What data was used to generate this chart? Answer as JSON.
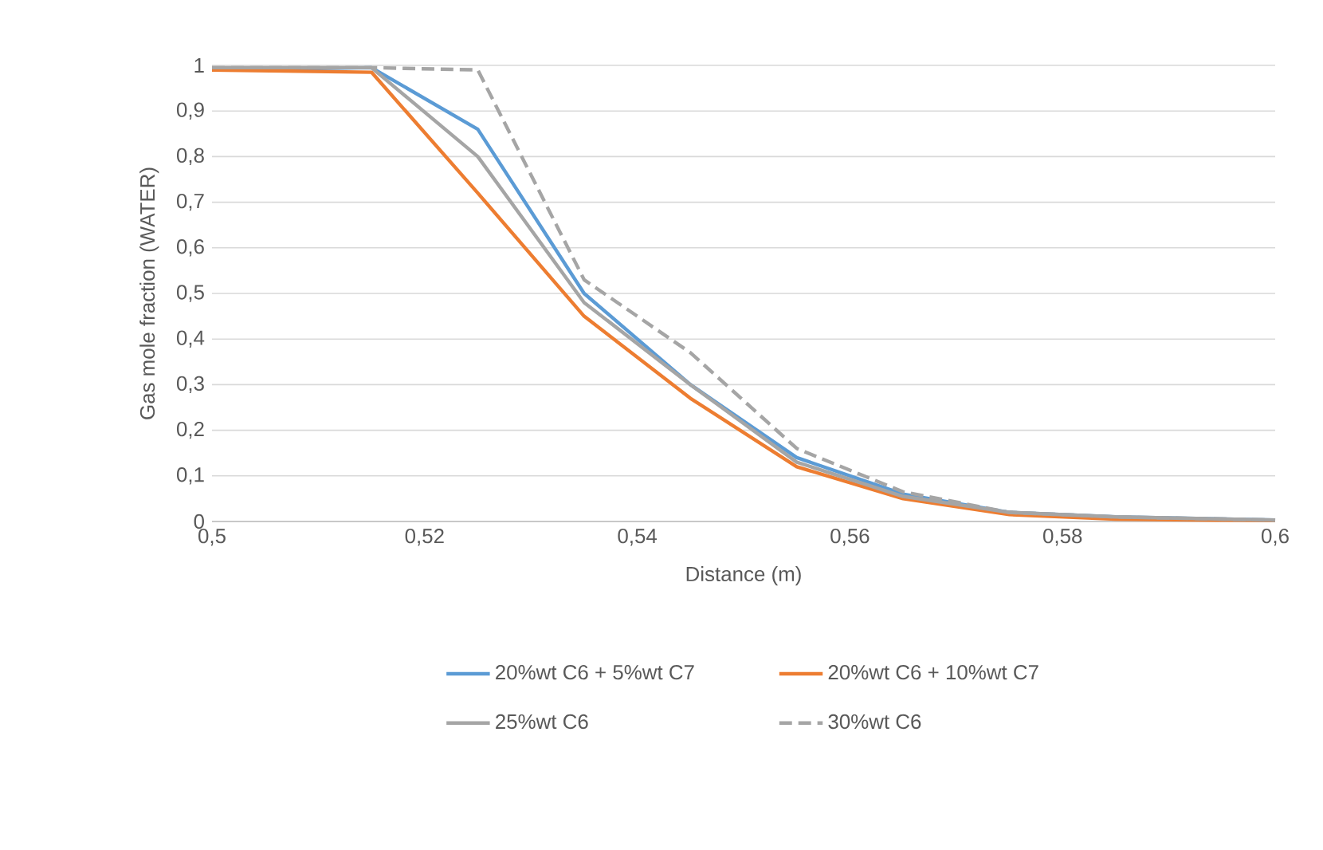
{
  "chart_data": {
    "type": "line",
    "xlabel": "Distance (m)",
    "ylabel": "Gas mole fraction (WATER)",
    "x": [
      0.5,
      0.515,
      0.525,
      0.535,
      0.545,
      0.555,
      0.565,
      0.575,
      0.585,
      0.6
    ],
    "series": [
      {
        "name": "20%wt C6 + 5%wt C7",
        "color": "#5b9bd5",
        "values": [
          0.99,
          0.995,
          0.86,
          0.5,
          0.3,
          0.14,
          0.06,
          0.02,
          0.01,
          0.003
        ]
      },
      {
        "name": "20%wt C6 + 10%wt C7",
        "color": "#ed7d31",
        "values": [
          0.99,
          0.985,
          0.72,
          0.45,
          0.27,
          0.12,
          0.05,
          0.015,
          0.005,
          0.002
        ]
      },
      {
        "name": "25%wt C6",
        "color": "#a5a5a5",
        "values": [
          0.995,
          0.995,
          0.8,
          0.48,
          0.3,
          0.13,
          0.055,
          0.02,
          0.01,
          0.003
        ]
      },
      {
        "name": "30%wt C6",
        "color": "#a5a5a5",
        "line_style": "dashed",
        "values": [
          0.995,
          0.995,
          0.99,
          0.53,
          0.37,
          0.16,
          0.065,
          0.02,
          0.01,
          0.003
        ]
      }
    ],
    "xlim": [
      0.5,
      0.6
    ],
    "xticks": [
      {
        "value": 0.5,
        "label": "0,5"
      },
      {
        "value": 0.52,
        "label": "0,52"
      },
      {
        "value": 0.54,
        "label": "0,54"
      },
      {
        "value": 0.56,
        "label": "0,56"
      },
      {
        "value": 0.58,
        "label": "0,58"
      },
      {
        "value": 0.6,
        "label": "0,6"
      }
    ],
    "ylim": [
      0,
      1
    ],
    "yticks": [
      0,
      {
        "value": 0.1,
        "label": "0,1"
      },
      {
        "value": 0.2,
        "label": "0,2"
      },
      {
        "value": 0.3,
        "label": "0,3"
      },
      {
        "value": 0.4,
        "label": "0,4"
      },
      {
        "value": 0.5,
        "label": "0,5"
      },
      {
        "value": 0.6,
        "label": "0,6"
      },
      {
        "value": 0.7,
        "label": "0,7"
      },
      {
        "value": 0.8,
        "label": "0,8"
      },
      {
        "value": 0.9,
        "label": "0,9"
      },
      1
    ],
    "grid": "y",
    "legend": "bottom",
    "line_style": "solid",
    "marker": "none"
  }
}
